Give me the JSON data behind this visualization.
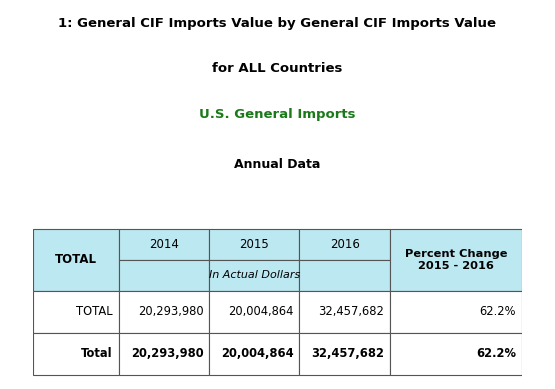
{
  "title_line1": "1: General CIF Imports Value by General CIF Imports Value",
  "title_line2": "for ALL Countries",
  "subtitle": "U.S. General Imports",
  "subtitle2": "Annual Data",
  "title_color": "#000000",
  "subtitle_color": "#1a7a1a",
  "subtitle2_color": "#000000",
  "banner_color": "#00008B",
  "table_header_bg": "#bce8f1",
  "table_body_bg": "#FFFFFF",
  "sub_header": "In Actual Dollars",
  "row1_label": "TOTAL",
  "row2_label": "Total",
  "row1_data": [
    "20,293,980",
    "20,004,864",
    "32,457,682",
    "62.2%"
  ],
  "row2_data": [
    "20,293,980",
    "20,004,864",
    "32,457,682",
    "62.2%"
  ],
  "background_color": "#FFFFFF",
  "title_fontsize": 9.5,
  "subtitle_fontsize": 9.5,
  "subtitle2_fontsize": 9.0,
  "table_fontsize": 8.0
}
